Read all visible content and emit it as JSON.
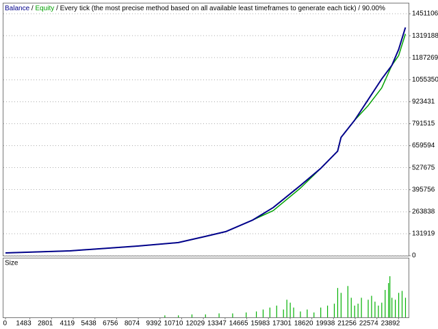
{
  "chart_data": [
    {
      "type": "line",
      "title": "Every tick (the most precise method based on all available least timeframes to generate each tick) / 90.00%",
      "separator": "/",
      "x": [
        0,
        3914,
        8034,
        10506,
        12154,
        13390,
        15038,
        16274,
        17922,
        19158,
        20188,
        20394,
        21218,
        22042,
        22866,
        23484,
        23896,
        24308
      ],
      "series": [
        {
          "name": "Equity",
          "color": "#00a000",
          "values": [
            16490,
            28857,
            57715,
            78330,
            115430,
            144290,
            214370,
            270000,
            405000,
            523560,
            626620,
            709070,
            812120,
            900000,
            1005890,
            1141930,
            1200000,
            1330000
          ]
        },
        {
          "name": "Balance",
          "color": "#00008b",
          "values": [
            16490,
            28857,
            57715,
            78330,
            115430,
            144290,
            214370,
            288575,
            420500,
            523560,
            626620,
            709070,
            812120,
            935800,
            1059480,
            1141930,
            1236750,
            1368670
          ]
        }
      ],
      "xlim": [
        0,
        24500
      ],
      "ylim": [
        0,
        1513000
      ],
      "yticks": [
        0,
        131919,
        263838,
        395756,
        527675,
        659594,
        791515,
        923431,
        1055350,
        1187269,
        1319188,
        1451106
      ],
      "grid": true
    },
    {
      "type": "bar",
      "title": "Size",
      "color": "#00b000",
      "x": [
        9682,
        10506,
        11330,
        12154,
        12978,
        13802,
        14626,
        15244,
        15656,
        16068,
        16480,
        16892,
        17098,
        17304,
        17510,
        17922,
        18334,
        18746,
        19158,
        19570,
        19982,
        20188,
        20394,
        20806,
        21012,
        21218,
        21424,
        21630,
        22042,
        22248,
        22454,
        22660,
        22866,
        23072,
        23278,
        23360,
        23484,
        23690,
        23896,
        24102,
        24308
      ],
      "values": [
        2,
        2,
        3,
        3,
        4,
        4,
        5,
        6,
        8,
        10,
        12,
        8,
        18,
        15,
        10,
        6,
        8,
        5,
        10,
        12,
        14,
        30,
        25,
        32,
        20,
        12,
        14,
        20,
        18,
        22,
        16,
        12,
        15,
        28,
        35,
        42,
        20,
        18,
        25,
        27,
        20
      ],
      "xlim": [
        0,
        24500
      ],
      "xticks": [
        0,
        1483,
        2801,
        4119,
        5438,
        6756,
        8074,
        9392,
        10710,
        12029,
        13347,
        14665,
        15983,
        17301,
        18620,
        19938,
        21256,
        22574,
        23892
      ]
    }
  ]
}
